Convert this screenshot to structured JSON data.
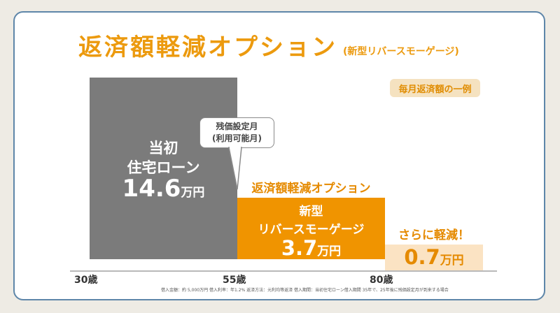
{
  "chart_data": {
    "type": "bar",
    "title": "返済額軽減オプション",
    "subtitle": "(新型リバースモーゲージ)",
    "tag": "毎月返済額の一例",
    "categories": [
      "当初住宅ローン",
      "新型リバースモーゲージ"
    ],
    "values": [
      14.6,
      3.7
    ],
    "unit": "万円",
    "bars": [
      {
        "name_lines": [
          "当初",
          "住宅ローン"
        ],
        "value": 14.6,
        "value_label": "14.6",
        "unit": "万円",
        "from_age": 30,
        "to_age": 55,
        "color": "#7b7b7b"
      },
      {
        "name_lines": [
          "新型",
          "リバースモーゲージ"
        ],
        "header": "返済額軽減オプション",
        "value": 3.7,
        "value_label": "3.7",
        "unit": "万円",
        "from_age": 55,
        "to_age": 80,
        "color": "#f09400"
      }
    ],
    "further": {
      "text": "さらに軽減！",
      "value": 0.7,
      "value_label": "0.7",
      "unit": "万円",
      "from_age": 80,
      "color": "#fbe3c3"
    },
    "callout": {
      "lines": [
        "残価設定月",
        "(利用可能月)"
      ]
    },
    "x_ticks": [
      "30歳",
      "55歳",
      "80歳"
    ],
    "note": "借入金額：約 5,000万円  借入利率：年1.2%  返済方法：元利均等返済    借入期間：当初住宅ローン借入期間 35年で、25年後に残価設定月が到来する場合"
  },
  "colors": {
    "accent": "#ec9a0e",
    "frame": "#5e86a9",
    "gray_bar": "#7b7b7b",
    "orange_bar": "#f09400",
    "light_bar": "#fbe3c3"
  }
}
